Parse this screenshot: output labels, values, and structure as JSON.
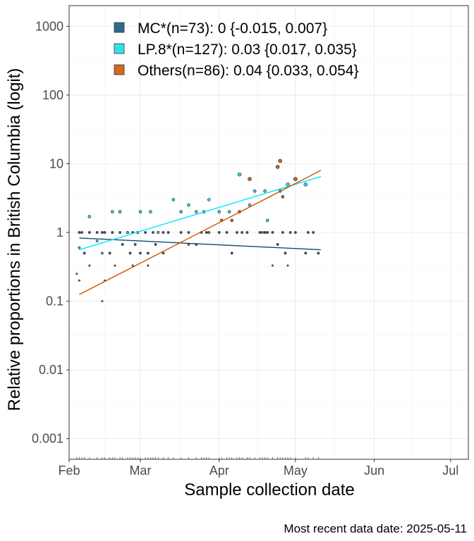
{
  "chart_data": {
    "type": "scatter",
    "ylabel": "Relative proportions in British Columbia (logit)",
    "xlabel": "Sample collection date",
    "caption": "Most recent data date: 2025-05-11",
    "y_scale": "log10",
    "ylim": [
      0.0005,
      2000
    ],
    "xlim": [
      "2025-02-01",
      "2025-07-08"
    ],
    "grid": true,
    "legend_position": "top-left",
    "y_ticks": [
      {
        "value": 0.001,
        "label": "0.001"
      },
      {
        "value": 0.01,
        "label": "0.01"
      },
      {
        "value": 0.1,
        "label": "0.1"
      },
      {
        "value": 1,
        "label": "1"
      },
      {
        "value": 10,
        "label": "10"
      },
      {
        "value": 100,
        "label": "100"
      },
      {
        "value": 1000,
        "label": "1000"
      }
    ],
    "x_ticks": [
      {
        "date": "2025-02-01",
        "label": "Feb"
      },
      {
        "date": "2025-03-01",
        "label": "Mar"
      },
      {
        "date": "2025-04-01",
        "label": "Apr"
      },
      {
        "date": "2025-05-01",
        "label": "May"
      },
      {
        "date": "2025-06-01",
        "label": "Jun"
      },
      {
        "date": "2025-07-01",
        "label": "Jul"
      }
    ],
    "series": [
      {
        "name": "MC*(n=73): 0 {-0.015, 0.007}",
        "color": "#2e6b8a",
        "line_color": "#0b4d6e",
        "fit": [
          {
            "date": "2025-02-05",
            "y": 0.83
          },
          {
            "date": "2025-05-11",
            "y": 0.56
          }
        ],
        "points": [
          {
            "date": "2025-02-05",
            "y": 1
          },
          {
            "date": "2025-02-06",
            "y": 1
          },
          {
            "date": "2025-02-07",
            "y": 0.5
          },
          {
            "date": "2025-02-09",
            "y": 1
          },
          {
            "date": "2025-02-12",
            "y": 1
          },
          {
            "date": "2025-02-14",
            "y": 1
          },
          {
            "date": "2025-02-15",
            "y": 1
          },
          {
            "date": "2025-02-17",
            "y": 0.5
          },
          {
            "date": "2025-02-18",
            "y": 1
          },
          {
            "date": "2025-02-21",
            "y": 1
          },
          {
            "date": "2025-02-22",
            "y": 0.67
          },
          {
            "date": "2025-02-24",
            "y": 1
          },
          {
            "date": "2025-02-25",
            "y": 0.5
          },
          {
            "date": "2025-02-26",
            "y": 1
          },
          {
            "date": "2025-02-27",
            "y": 0.67
          },
          {
            "date": "2025-02-28",
            "y": 1
          },
          {
            "date": "2025-03-01",
            "y": 0.5
          },
          {
            "date": "2025-03-03",
            "y": 1
          },
          {
            "date": "2025-03-04",
            "y": 0.5
          },
          {
            "date": "2025-03-06",
            "y": 1
          },
          {
            "date": "2025-03-07",
            "y": 0.67
          },
          {
            "date": "2025-03-08",
            "y": 1
          },
          {
            "date": "2025-03-10",
            "y": 1
          },
          {
            "date": "2025-03-12",
            "y": 1
          },
          {
            "date": "2025-03-17",
            "y": 1
          },
          {
            "date": "2025-03-20",
            "y": 1
          },
          {
            "date": "2025-03-23",
            "y": 0.67
          },
          {
            "date": "2025-03-25",
            "y": 1
          },
          {
            "date": "2025-03-27",
            "y": 1
          },
          {
            "date": "2025-04-01",
            "y": 1
          },
          {
            "date": "2025-04-04",
            "y": 1
          },
          {
            "date": "2025-04-06",
            "y": 0.5
          },
          {
            "date": "2025-04-08",
            "y": 1
          },
          {
            "date": "2025-04-10",
            "y": 1
          },
          {
            "date": "2025-04-12",
            "y": 1
          },
          {
            "date": "2025-04-17",
            "y": 1
          },
          {
            "date": "2025-04-19",
            "y": 1
          },
          {
            "date": "2025-04-20",
            "y": 1
          },
          {
            "date": "2025-04-22",
            "y": 1
          },
          {
            "date": "2025-04-24",
            "y": 0.67
          },
          {
            "date": "2025-04-26",
            "y": 1
          },
          {
            "date": "2025-04-27",
            "y": 0.5
          },
          {
            "date": "2025-04-29",
            "y": 1
          },
          {
            "date": "2025-05-01",
            "y": 1
          },
          {
            "date": "2025-05-05",
            "y": 0.5
          },
          {
            "date": "2025-05-06",
            "y": 1
          },
          {
            "date": "2025-05-08",
            "y": 1
          },
          {
            "date": "2025-05-10",
            "y": 0.5
          }
        ]
      },
      {
        "name": "LP.8*(n=127): 0.03 {0.017, 0.035}",
        "color": "#33e0ea",
        "line_color": "#00e5ff",
        "fit": [
          {
            "date": "2025-02-05",
            "y": 0.56
          },
          {
            "date": "2025-05-11",
            "y": 6.5
          }
        ],
        "points": [
          {
            "date": "2025-02-05",
            "y": 0.6
          },
          {
            "date": "2025-02-09",
            "y": 1.7
          },
          {
            "date": "2025-02-12",
            "y": 0.75
          },
          {
            "date": "2025-02-14",
            "y": 0.5
          },
          {
            "date": "2025-02-18",
            "y": 2
          },
          {
            "date": "2025-02-21",
            "y": 2
          },
          {
            "date": "2025-02-24",
            "y": 1
          },
          {
            "date": "2025-02-28",
            "y": 1
          },
          {
            "date": "2025-03-01",
            "y": 2
          },
          {
            "date": "2025-03-05",
            "y": 2
          },
          {
            "date": "2025-03-08",
            "y": 1
          },
          {
            "date": "2025-03-14",
            "y": 3
          },
          {
            "date": "2025-03-17",
            "y": 2
          },
          {
            "date": "2025-03-20",
            "y": 2.5
          },
          {
            "date": "2025-03-23",
            "y": 2
          },
          {
            "date": "2025-03-26",
            "y": 2
          },
          {
            "date": "2025-03-28",
            "y": 3
          },
          {
            "date": "2025-04-01",
            "y": 2
          },
          {
            "date": "2025-04-05",
            "y": 2
          },
          {
            "date": "2025-04-09",
            "y": 7
          },
          {
            "date": "2025-04-13",
            "y": 2.5
          },
          {
            "date": "2025-04-15",
            "y": 4
          },
          {
            "date": "2025-04-19",
            "y": 4
          },
          {
            "date": "2025-04-20",
            "y": 1.5
          },
          {
            "date": "2025-04-25",
            "y": 4
          },
          {
            "date": "2025-04-28",
            "y": 5
          },
          {
            "date": "2025-05-01",
            "y": 6
          },
          {
            "date": "2025-05-05",
            "y": 5
          }
        ]
      },
      {
        "name": "Others(n=86): 0.04 {0.033, 0.054}",
        "color": "#d2691e",
        "line_color": "#cc5500",
        "fit": [
          {
            "date": "2025-02-05",
            "y": 0.125
          },
          {
            "date": "2025-05-11",
            "y": 8
          }
        ],
        "points": [
          {
            "date": "2025-02-04",
            "y": 0.25
          },
          {
            "date": "2025-02-05",
            "y": 0.2
          },
          {
            "date": "2025-02-09",
            "y": 0.33
          },
          {
            "date": "2025-02-14",
            "y": 0.1
          },
          {
            "date": "2025-02-15",
            "y": 0.2
          },
          {
            "date": "2025-02-19",
            "y": 0.33
          },
          {
            "date": "2025-02-26",
            "y": 0.33
          },
          {
            "date": "2025-03-04",
            "y": 0.33
          },
          {
            "date": "2025-03-10",
            "y": 0.5
          },
          {
            "date": "2025-03-20",
            "y": 0.67
          },
          {
            "date": "2025-03-28",
            "y": 1
          },
          {
            "date": "2025-04-02",
            "y": 1.5
          },
          {
            "date": "2025-04-06",
            "y": 1.5
          },
          {
            "date": "2025-04-09",
            "y": 2
          },
          {
            "date": "2025-04-13",
            "y": 6
          },
          {
            "date": "2025-04-18",
            "y": 1
          },
          {
            "date": "2025-04-22",
            "y": 0.33
          },
          {
            "date": "2025-04-24",
            "y": 9
          },
          {
            "date": "2025-04-25",
            "y": 11
          },
          {
            "date": "2025-04-26",
            "y": 3.3
          },
          {
            "date": "2025-04-28",
            "y": 0.33
          },
          {
            "date": "2025-05-01",
            "y": 6
          }
        ]
      }
    ]
  }
}
